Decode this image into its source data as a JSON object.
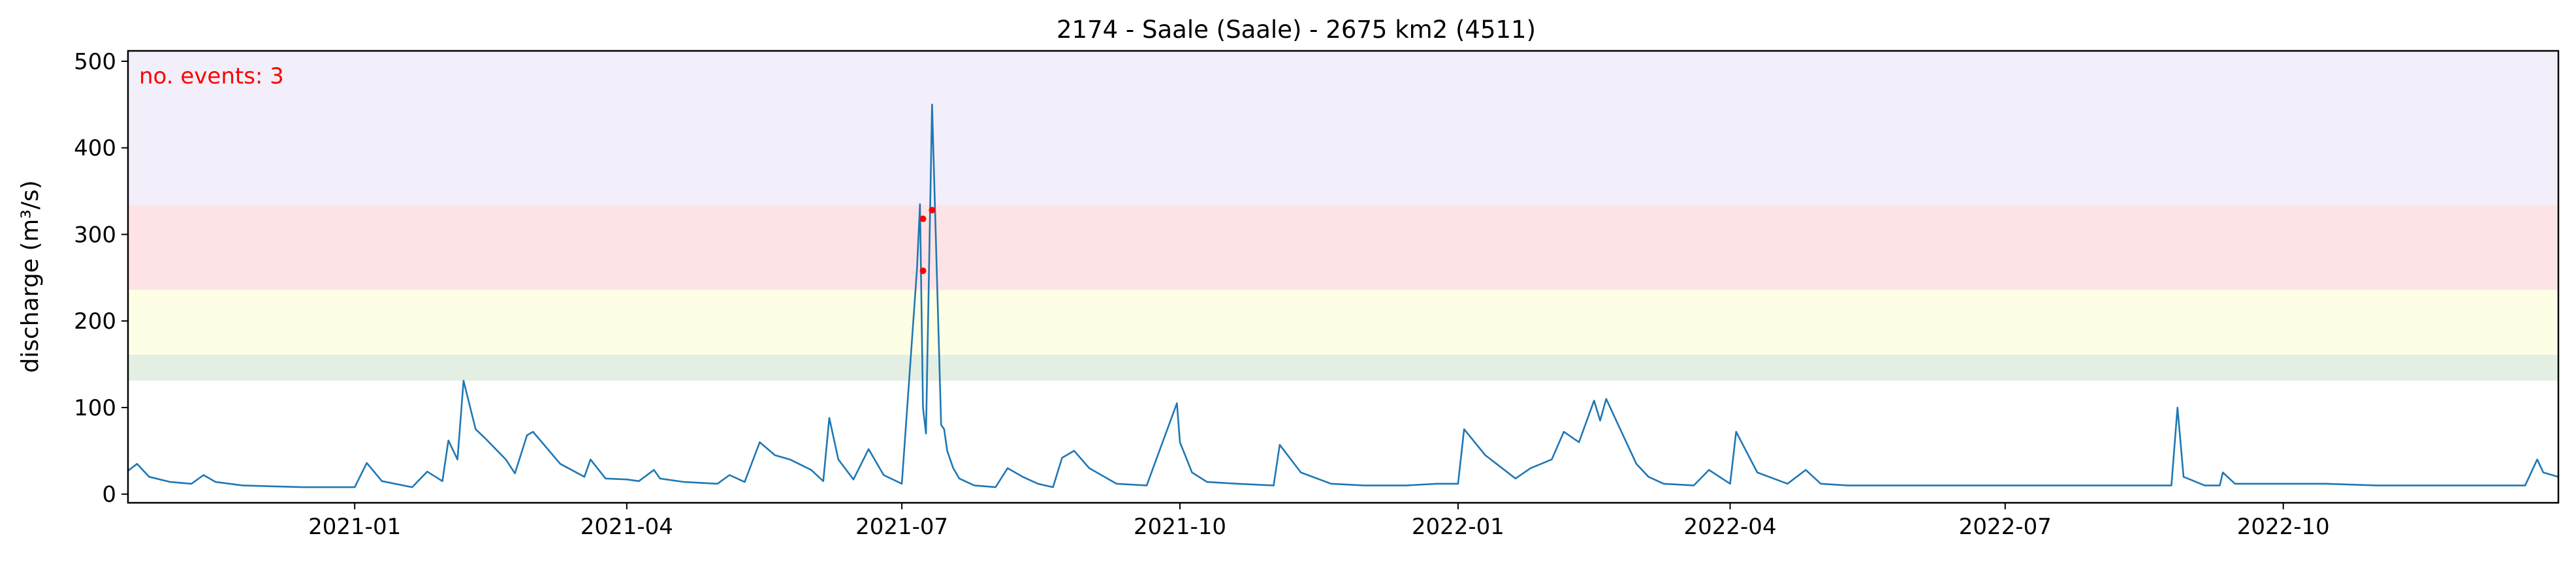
{
  "chart_data": {
    "type": "line",
    "title": "2174 - Saale (Saale) - 2675 km2 (4511)",
    "ylabel": "discharge (m³/s)",
    "xlabel": "",
    "xlim": [
      "2020-10-18",
      "2022-12-31"
    ],
    "ylim": [
      -10,
      512
    ],
    "x_ticks": [
      "2021-01-01",
      "2021-04-01",
      "2021-07-01",
      "2021-10-01",
      "2022-01-01",
      "2022-04-01",
      "2022-07-01",
      "2022-10-01"
    ],
    "x_tick_labels": [
      "2021-01",
      "2021-04",
      "2021-07",
      "2021-10",
      "2022-01",
      "2022-04",
      "2022-07",
      "2022-10"
    ],
    "y_ticks": [
      0,
      100,
      200,
      300,
      400,
      500
    ],
    "grid": false,
    "threshold_bands": [
      {
        "from": 131,
        "to": 161,
        "color": "#e3efe3"
      },
      {
        "from": 161,
        "to": 236,
        "color": "#fefee5"
      },
      {
        "from": 236,
        "to": 334,
        "color": "#fde3e5"
      },
      {
        "from": 334,
        "to": 512,
        "color": "#f2effa"
      }
    ],
    "annotation": {
      "text": "no. events: 3",
      "color": "#ff0000"
    },
    "series": [
      {
        "color": "#1f77b4",
        "x": [
          "2020-10-18",
          "2020-10-21",
          "2020-10-25",
          "2020-11-01",
          "2020-11-08",
          "2020-11-12",
          "2020-11-16",
          "2020-11-25",
          "2020-12-05",
          "2020-12-15",
          "2020-12-25",
          "2021-01-01",
          "2021-01-05",
          "2021-01-10",
          "2021-01-20",
          "2021-01-25",
          "2021-01-30",
          "2021-02-01",
          "2021-02-04",
          "2021-02-06",
          "2021-02-10",
          "2021-02-13",
          "2021-02-20",
          "2021-02-23",
          "2021-02-27",
          "2021-03-01",
          "2021-03-10",
          "2021-03-18",
          "2021-03-20",
          "2021-03-25",
          "2021-04-01",
          "2021-04-05",
          "2021-04-10",
          "2021-04-12",
          "2021-04-20",
          "2021-05-01",
          "2021-05-05",
          "2021-05-10",
          "2021-05-15",
          "2021-05-20",
          "2021-05-25",
          "2021-06-01",
          "2021-06-05",
          "2021-06-07",
          "2021-06-10",
          "2021-06-15",
          "2021-06-20",
          "2021-06-25",
          "2021-07-01",
          "2021-07-06",
          "2021-07-07",
          "2021-07-08",
          "2021-07-09",
          "2021-07-11",
          "2021-07-14",
          "2021-07-15",
          "2021-07-16",
          "2021-07-18",
          "2021-07-20",
          "2021-07-25",
          "2021-08-01",
          "2021-08-05",
          "2021-08-10",
          "2021-08-15",
          "2021-08-20",
          "2021-08-23",
          "2021-08-27",
          "2021-09-01",
          "2021-09-10",
          "2021-09-20",
          "2021-09-30",
          "2021-10-01",
          "2021-10-05",
          "2021-10-10",
          "2021-10-20",
          "2021-11-01",
          "2021-11-03",
          "2021-11-10",
          "2021-11-20",
          "2021-12-01",
          "2021-12-15",
          "2021-12-25",
          "2022-01-01",
          "2022-01-03",
          "2022-01-10",
          "2022-01-20",
          "2022-01-25",
          "2022-02-01",
          "2022-02-05",
          "2022-02-10",
          "2022-02-15",
          "2022-02-17",
          "2022-02-19",
          "2022-02-21",
          "2022-02-25",
          "2022-03-01",
          "2022-03-05",
          "2022-03-10",
          "2022-03-20",
          "2022-03-25",
          "2022-04-01",
          "2022-04-03",
          "2022-04-10",
          "2022-04-20",
          "2022-04-26",
          "2022-05-01",
          "2022-05-10",
          "2022-06-01",
          "2022-07-01",
          "2022-08-01",
          "2022-08-25",
          "2022-08-27",
          "2022-08-29",
          "2022-09-05",
          "2022-09-10",
          "2022-09-11",
          "2022-09-15",
          "2022-10-01",
          "2022-10-15",
          "2022-11-01",
          "2022-11-15",
          "2022-12-01",
          "2022-12-20",
          "2022-12-24",
          "2022-12-26",
          "2022-12-31"
        ],
        "y": [
          27,
          35,
          20,
          14,
          12,
          22,
          14,
          10,
          9,
          8,
          8,
          8,
          36,
          15,
          8,
          26,
          15,
          62,
          40,
          131,
          75,
          65,
          40,
          24,
          68,
          72,
          35,
          20,
          40,
          18,
          17,
          15,
          28,
          18,
          14,
          12,
          22,
          14,
          60,
          45,
          40,
          28,
          15,
          88,
          40,
          17,
          52,
          22,
          12,
          260,
          335,
          100,
          70,
          450,
          80,
          75,
          50,
          30,
          18,
          10,
          8,
          30,
          20,
          12,
          8,
          42,
          50,
          30,
          12,
          10,
          105,
          60,
          25,
          14,
          12,
          10,
          57,
          25,
          12,
          10,
          10,
          12,
          12,
          75,
          45,
          18,
          30,
          40,
          72,
          60,
          108,
          85,
          110,
          95,
          65,
          35,
          20,
          12,
          10,
          28,
          12,
          72,
          25,
          12,
          28,
          12,
          10,
          10,
          10,
          10,
          10,
          100,
          20,
          10,
          10,
          25,
          12,
          12,
          12,
          10,
          10,
          10,
          10,
          40,
          25,
          20
        ]
      }
    ],
    "event_points": [
      {
        "x": "2021-07-08",
        "y": 258
      },
      {
        "x": "2021-07-08",
        "y": 318
      },
      {
        "x": "2021-07-11",
        "y": 328
      }
    ]
  }
}
